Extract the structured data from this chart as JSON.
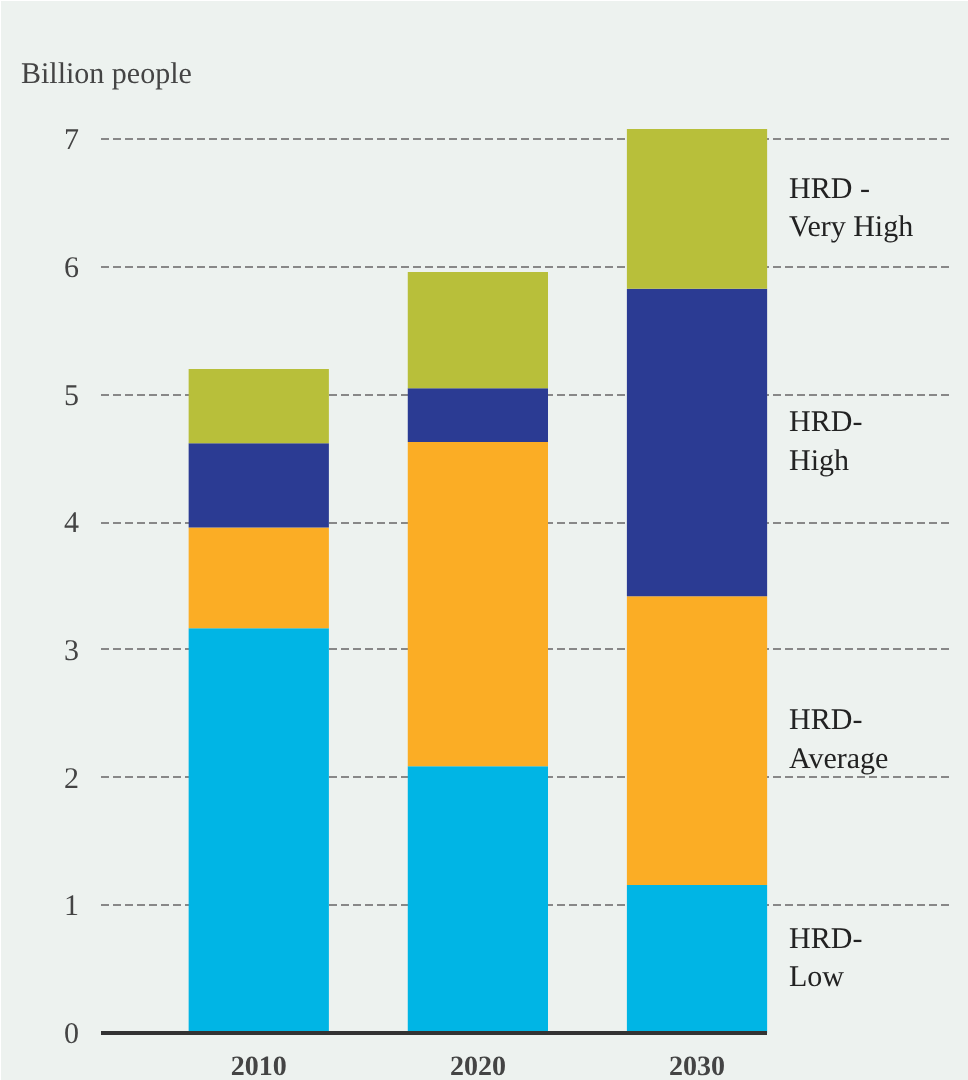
{
  "chart_data": {
    "type": "bar",
    "stacked": true,
    "ylabel": "Billion people",
    "categories": [
      "2010",
      "2020",
      "2030"
    ],
    "series": [
      {
        "name": "HRD-\nLow",
        "color": "#00b5e5",
        "values": [
          3.17,
          2.09,
          1.16
        ]
      },
      {
        "name": "HRD-\nAverage",
        "color": "#fbad25",
        "values": [
          0.79,
          2.54,
          2.26
        ]
      },
      {
        "name": "HRD-\nHigh",
        "color": "#2b3b93",
        "values": [
          0.66,
          0.42,
          2.41
        ]
      },
      {
        "name": "HRD -\nVery High",
        "color": "#b8bf3a",
        "values": [
          0.58,
          0.91,
          1.25
        ]
      }
    ],
    "ylim": [
      0,
      7.3
    ],
    "yticks": [
      0,
      1,
      2,
      3,
      4,
      5,
      6,
      7
    ],
    "grid": "y"
  }
}
